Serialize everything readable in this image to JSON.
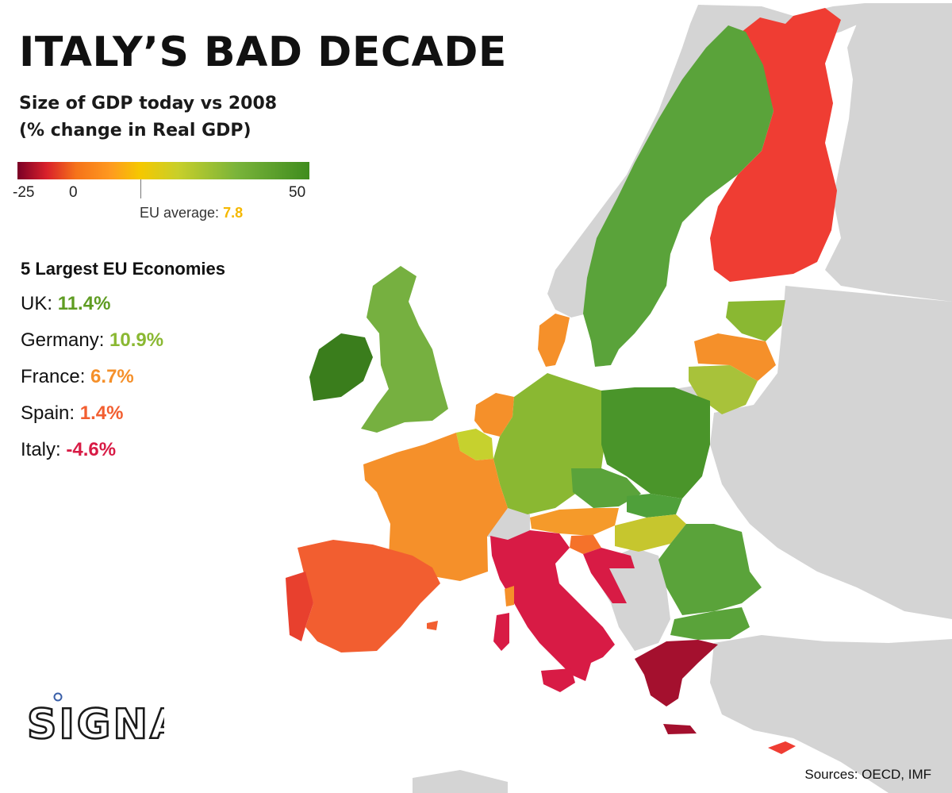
{
  "title": "ITALY’S BAD DECADE",
  "subtitle": {
    "line1": "Size of GDP today vs 2008",
    "line2": "(% change in Real GDP)"
  },
  "legend": {
    "min_label": "-25",
    "zero_label": "0",
    "max_label": "50",
    "min_value": -25,
    "max_value": 50,
    "eu_average_label": "EU average:",
    "eu_average_value": "7.8",
    "eu_average_color": "#f5b800"
  },
  "largest_economies": {
    "heading": "5 Largest EU Economies",
    "items": [
      {
        "name": "UK:",
        "value": "11.4%",
        "color": "#5f9c22"
      },
      {
        "name": "Germany:",
        "value": "10.9%",
        "color": "#8ab832"
      },
      {
        "name": "France:",
        "value": "6.7%",
        "color": "#f5902a"
      },
      {
        "name": "Spain:",
        "value": "1.4%",
        "color": "#f25e30"
      },
      {
        "name": "Italy:",
        "value": "-4.6%",
        "color": "#d81b45"
      }
    ]
  },
  "map_colors": {
    "non_eu_land": "#d4d4d4",
    "sea": "#ffffff",
    "border": "#ffffff"
  },
  "logo": {
    "text": "SIGNAL",
    "accent_color": "#3a5fa8"
  },
  "sources": "Sources: OECD, IMF"
}
